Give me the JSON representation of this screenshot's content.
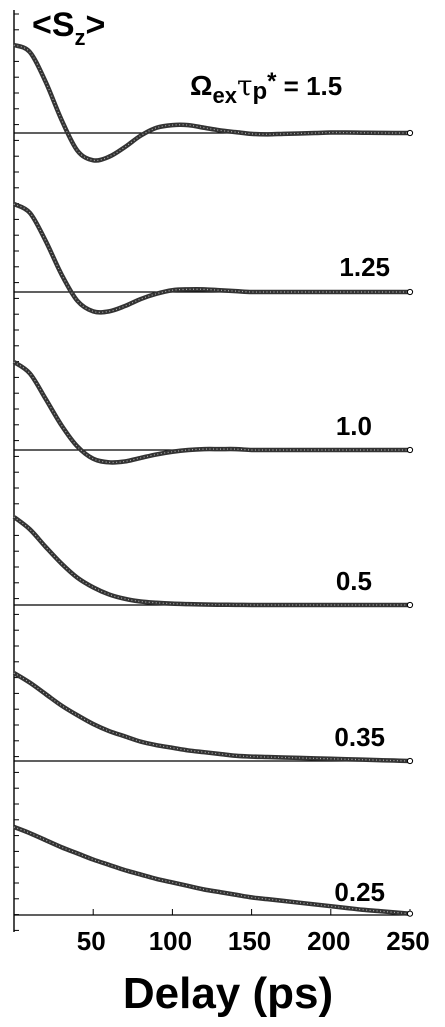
{
  "chart_data": {
    "type": "line",
    "title": "",
    "ylabel_main": "<S",
    "ylabel_sub": "z",
    "ylabel_end": ">",
    "xlabel": "Delay (ps)",
    "xlim": [
      0,
      250
    ],
    "xticks": [
      50,
      100,
      150,
      200,
      250
    ],
    "param_label": {
      "omega": "Ω",
      "ex": "ex",
      "tau": "τ",
      "p": "p",
      "star": "*",
      "eq": " = "
    },
    "panels": [
      {
        "label": "1.5",
        "x": [
          0,
          10,
          20,
          30,
          40,
          50,
          60,
          70,
          80,
          90,
          100,
          110,
          120,
          130,
          140,
          150,
          160,
          170,
          180,
          190,
          200,
          210,
          220,
          230,
          240,
          250
        ],
        "y": [
          1.0,
          0.92,
          0.58,
          0.15,
          -0.2,
          -0.31,
          -0.27,
          -0.16,
          -0.03,
          0.06,
          0.09,
          0.09,
          0.06,
          0.03,
          0.01,
          -0.01,
          -0.015,
          -0.01,
          -0.005,
          0.0,
          0.005,
          0.005,
          0.003,
          0.001,
          0.0,
          0.0
        ]
      },
      {
        "label": "1.25",
        "x": [
          0,
          10,
          20,
          30,
          40,
          50,
          60,
          70,
          80,
          90,
          100,
          110,
          120,
          130,
          140,
          150,
          160,
          170,
          180,
          190,
          200,
          210,
          220,
          230,
          240,
          250
        ],
        "y": [
          1.0,
          0.9,
          0.58,
          0.2,
          -0.1,
          -0.22,
          -0.22,
          -0.16,
          -0.08,
          -0.02,
          0.02,
          0.03,
          0.03,
          0.02,
          0.01,
          0.0,
          0.0,
          0.0,
          0.0,
          0.0,
          0.0,
          0.0,
          0.0,
          0.0,
          0.0,
          0.0
        ]
      },
      {
        "label": "1.0",
        "x": [
          0,
          10,
          20,
          30,
          40,
          50,
          60,
          70,
          80,
          90,
          100,
          110,
          120,
          130,
          140,
          150,
          160,
          170,
          180,
          190,
          200,
          210,
          220,
          230,
          240,
          250
        ],
        "y": [
          1.0,
          0.87,
          0.58,
          0.28,
          0.04,
          -0.1,
          -0.14,
          -0.13,
          -0.09,
          -0.05,
          -0.02,
          0.0,
          0.01,
          0.01,
          0.01,
          0.0,
          0.0,
          0.0,
          0.0,
          0.0,
          0.0,
          0.0,
          0.0,
          0.0,
          0.0,
          0.0
        ]
      },
      {
        "label": "0.5",
        "x": [
          0,
          10,
          20,
          30,
          40,
          50,
          60,
          70,
          80,
          90,
          100,
          110,
          120,
          130,
          140,
          150,
          160,
          170,
          180,
          190,
          200,
          210,
          220,
          230,
          240,
          250
        ],
        "y": [
          1.0,
          0.86,
          0.66,
          0.47,
          0.31,
          0.2,
          0.12,
          0.07,
          0.04,
          0.025,
          0.015,
          0.01,
          0.005,
          0.003,
          0.002,
          0.0,
          0.0,
          0.0,
          0.0,
          0.0,
          0.0,
          0.0,
          0.0,
          0.0,
          0.0,
          0.0
        ]
      },
      {
        "label": "0.35",
        "x": [
          0,
          10,
          20,
          30,
          40,
          50,
          60,
          70,
          80,
          90,
          100,
          110,
          120,
          130,
          140,
          150,
          160,
          170,
          180,
          190,
          200,
          210,
          220,
          230,
          240,
          250
        ],
        "y": [
          1.0,
          0.89,
          0.76,
          0.63,
          0.52,
          0.42,
          0.34,
          0.28,
          0.22,
          0.18,
          0.15,
          0.12,
          0.1,
          0.08,
          0.06,
          0.05,
          0.045,
          0.04,
          0.035,
          0.03,
          0.025,
          0.02,
          0.015,
          0.01,
          0.005,
          0.0
        ]
      },
      {
        "label": "0.25",
        "x": [
          0,
          10,
          20,
          30,
          40,
          50,
          60,
          70,
          80,
          90,
          100,
          110,
          120,
          130,
          140,
          150,
          160,
          170,
          180,
          190,
          200,
          210,
          220,
          230,
          240,
          250
        ],
        "y": [
          1.0,
          0.93,
          0.85,
          0.77,
          0.7,
          0.63,
          0.57,
          0.51,
          0.46,
          0.41,
          0.37,
          0.33,
          0.29,
          0.26,
          0.23,
          0.2,
          0.18,
          0.16,
          0.14,
          0.12,
          0.1,
          0.08,
          0.06,
          0.045,
          0.03,
          0.015
        ]
      }
    ]
  }
}
